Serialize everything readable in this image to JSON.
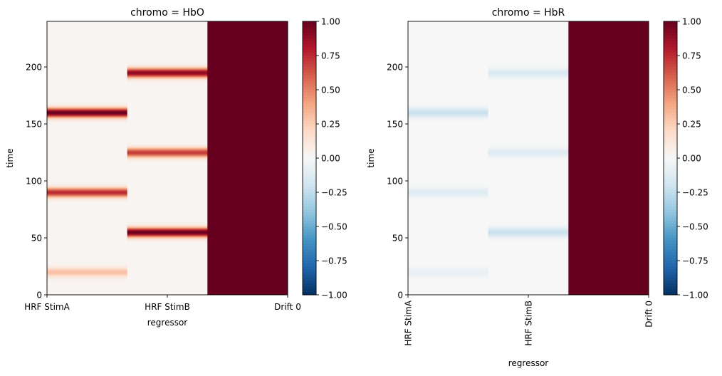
{
  "colormap": {
    "name": "RdBu_r",
    "stops": [
      "#053061",
      "#2166ac",
      "#4393c3",
      "#92c5de",
      "#d1e5f0",
      "#f7f7f7",
      "#fddbc7",
      "#f4a582",
      "#d6604d",
      "#b2182b",
      "#67001f"
    ]
  },
  "chart_data": [
    {
      "type": "heatmap",
      "title": "chromo = HbO",
      "xlabel": "regressor",
      "ylabel": "time",
      "categories": [
        "HRF StimA",
        "HRF StimB",
        "Drift 0"
      ],
      "xtick_rotation": 0,
      "ylim": [
        0,
        240
      ],
      "yticks": [
        "0",
        "50",
        "100",
        "150",
        "200"
      ],
      "clim": [
        -1,
        1
      ],
      "colorbar_ticks": [
        "1.00",
        "0.75",
        "0.50",
        "0.25",
        "0.00",
        "−0.25",
        "−0.50",
        "−0.75",
        "−1.00"
      ],
      "background_value": 0.02,
      "columns": [
        {
          "name": "HRF StimA",
          "events": [
            {
              "time": 20,
              "peak": 0.3
            },
            {
              "time": 90,
              "peak": 0.75
            },
            {
              "time": 160,
              "peak": 1.0
            }
          ]
        },
        {
          "name": "HRF StimB",
          "events": [
            {
              "time": 55,
              "peak": 1.0
            },
            {
              "time": 125,
              "peak": 0.7
            },
            {
              "time": 195,
              "peak": 0.9
            }
          ]
        },
        {
          "name": "Drift 0",
          "constant": 1.0
        }
      ]
    },
    {
      "type": "heatmap",
      "title": "chromo = HbR",
      "xlabel": "regressor",
      "ylabel": "time",
      "categories": [
        "HRF StimA",
        "HRF StimB",
        "Drift 0"
      ],
      "xtick_rotation": 90,
      "ylim": [
        0,
        240
      ],
      "yticks": [
        "0",
        "50",
        "100",
        "150",
        "200"
      ],
      "clim": [
        -1,
        1
      ],
      "colorbar_ticks": [
        "1.00",
        "0.75",
        "0.50",
        "0.25",
        "0.00",
        "−0.25",
        "−0.50",
        "−0.75",
        "−1.00"
      ],
      "background_value": 0.0,
      "columns": [
        {
          "name": "HRF StimA",
          "events": [
            {
              "time": 20,
              "peak": -0.08
            },
            {
              "time": 90,
              "peak": -0.12
            },
            {
              "time": 160,
              "peak": -0.22
            }
          ]
        },
        {
          "name": "HRF StimB",
          "events": [
            {
              "time": 55,
              "peak": -0.22
            },
            {
              "time": 125,
              "peak": -0.12
            },
            {
              "time": 195,
              "peak": -0.15
            }
          ]
        },
        {
          "name": "Drift 0",
          "constant": 1.0
        }
      ]
    }
  ]
}
